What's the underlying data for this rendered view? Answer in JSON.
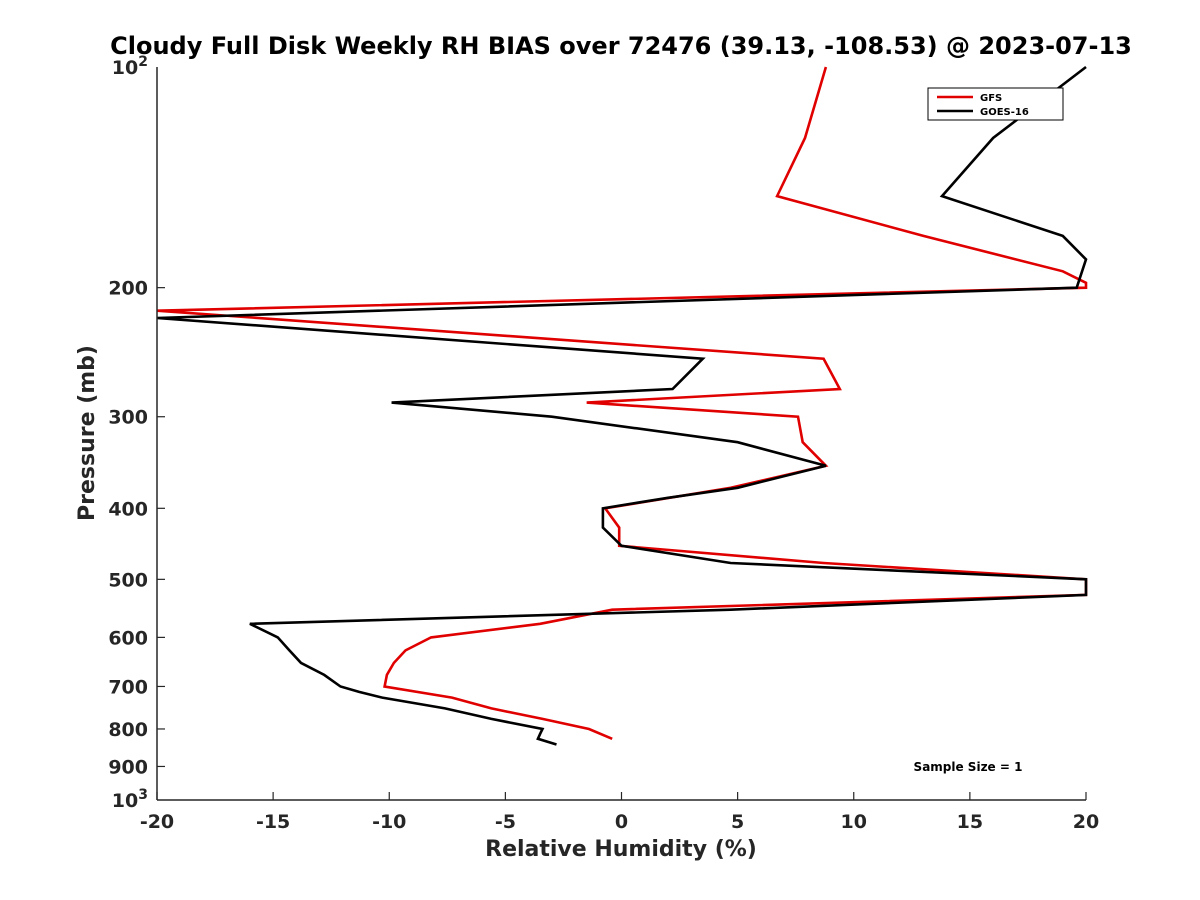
{
  "chart_data": {
    "type": "line",
    "title": "Cloudy Full Disk Weekly RH BIAS over 72476 (39.13, -108.53) @ 2023-07-13",
    "xlabel": "Relative Humidity (%)",
    "ylabel": "Pressure (mb)",
    "xlim": [
      -20,
      20
    ],
    "ylim": [
      100,
      1000
    ],
    "y_scale": "log",
    "y_reversed": true,
    "grid": false,
    "legend_position": "top-right",
    "x_ticks": [
      -20,
      -15,
      -10,
      -5,
      0,
      5,
      10,
      15,
      20
    ],
    "x_tick_labels": [
      "-20",
      "-15",
      "-10",
      "-5",
      "0",
      "5",
      "10",
      "15",
      "20"
    ],
    "y_ticks": [
      200,
      300,
      400,
      500,
      600,
      700,
      800,
      900
    ],
    "y_tick_labels": [
      "200",
      "300",
      "400",
      "500",
      "600",
      "700",
      "800",
      "900"
    ],
    "y_top_label": {
      "base": "10",
      "exp": "2"
    },
    "y_bottom_label": {
      "base": "10",
      "exp": "3"
    },
    "annotation": "Sample Size = 1",
    "series": [
      {
        "name": "GFS",
        "color": "#e00000",
        "points": [
          [
            8.8,
            100
          ],
          [
            7.9,
            125
          ],
          [
            6.7,
            150
          ],
          [
            13.0,
            170
          ],
          [
            19.0,
            190
          ],
          [
            20.0,
            197
          ],
          [
            20.0,
            200
          ],
          [
            -20.0,
            215
          ],
          [
            8.7,
            250
          ],
          [
            9.4,
            275
          ],
          [
            -1.5,
            287
          ],
          [
            7.6,
            300
          ],
          [
            7.8,
            325
          ],
          [
            8.8,
            350
          ],
          [
            4.7,
            375
          ],
          [
            -0.7,
            400
          ],
          [
            -0.1,
            425
          ],
          [
            -0.1,
            450
          ],
          [
            8.7,
            475
          ],
          [
            20.0,
            500
          ],
          [
            20.0,
            525
          ],
          [
            -0.4,
            550
          ],
          [
            -3.5,
            575
          ],
          [
            -8.2,
            600
          ],
          [
            -9.3,
            625
          ],
          [
            -9.8,
            650
          ],
          [
            -10.1,
            675
          ],
          [
            -10.2,
            700
          ],
          [
            -7.3,
            725
          ],
          [
            -5.6,
            750
          ],
          [
            -3.4,
            775
          ],
          [
            -1.4,
            800
          ],
          [
            -0.4,
            825
          ]
        ]
      },
      {
        "name": "GOES-16",
        "color": "#000000",
        "points": [
          [
            20.0,
            100
          ],
          [
            16.0,
            125
          ],
          [
            13.8,
            150
          ],
          [
            19.0,
            170
          ],
          [
            20.0,
            183
          ],
          [
            19.6,
            200
          ],
          [
            -20.0,
            220
          ],
          [
            3.5,
            250
          ],
          [
            2.2,
            275
          ],
          [
            -9.9,
            287
          ],
          [
            -3.0,
            300
          ],
          [
            5.0,
            325
          ],
          [
            8.8,
            350
          ],
          [
            5.0,
            375
          ],
          [
            2.0,
            387
          ],
          [
            -0.8,
            400
          ],
          [
            -0.8,
            425
          ],
          [
            0.0,
            450
          ],
          [
            4.7,
            475
          ],
          [
            20.0,
            500
          ],
          [
            20.0,
            525
          ],
          [
            4.7,
            550
          ],
          [
            -16.0,
            575
          ],
          [
            -14.8,
            600
          ],
          [
            -14.3,
            625
          ],
          [
            -13.8,
            650
          ],
          [
            -12.8,
            675
          ],
          [
            -12.1,
            700
          ],
          [
            -11.3,
            712
          ],
          [
            -10.3,
            725
          ],
          [
            -7.6,
            750
          ],
          [
            -5.6,
            775
          ],
          [
            -3.4,
            800
          ],
          [
            -3.5,
            812
          ],
          [
            -3.6,
            825
          ],
          [
            -2.8,
            840
          ]
        ]
      }
    ]
  }
}
